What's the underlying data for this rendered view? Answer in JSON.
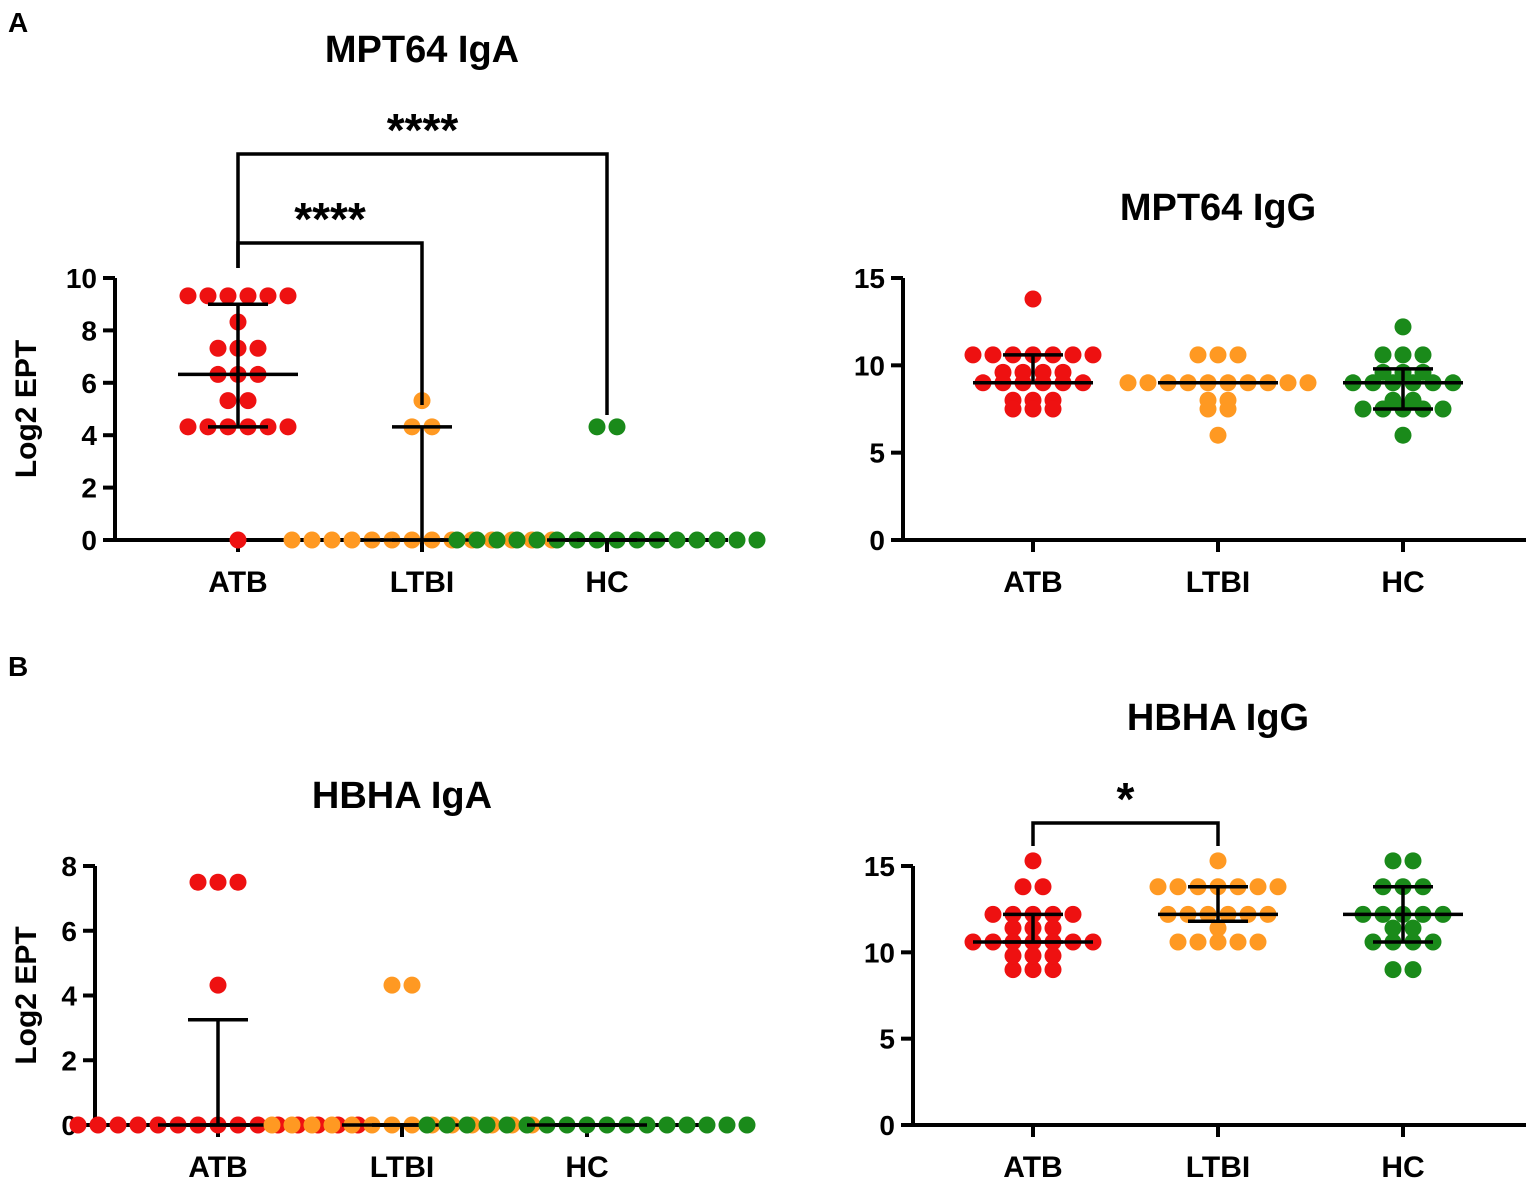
{
  "figure": {
    "panel_labels": [
      "A",
      "B"
    ]
  },
  "colors": {
    "ATB": "#ee1111",
    "LTBI": "#ff9922",
    "HC": "#1a8a1a",
    "axis": "#000000"
  },
  "chart_data": [
    {
      "id": "mpt64-iga",
      "type": "scatter",
      "panel": "A",
      "title": "MPT64 IgA",
      "ylabel": "Log2 EPT",
      "xlabel": "",
      "categories": [
        "ATB",
        "LTBI",
        "HC"
      ],
      "yticks": [
        0,
        2,
        4,
        6,
        8,
        10
      ],
      "ylim": [
        0,
        10
      ],
      "groups": [
        {
          "name": "ATB",
          "median": 6.32,
          "iqr": [
            4.32,
            9.0
          ],
          "points": [
            9.32,
            9.32,
            9.32,
            9.32,
            9.32,
            9.32,
            8.32,
            7.32,
            7.32,
            7.32,
            6.32,
            6.32,
            6.32,
            5.32,
            5.32,
            4.32,
            4.32,
            4.32,
            4.32,
            4.32,
            4.32,
            0
          ]
        },
        {
          "name": "LTBI",
          "median": 0,
          "iqr": [
            0,
            4.32
          ],
          "points": [
            5.32,
            4.32,
            4.32,
            0,
            0,
            0,
            0,
            0,
            0,
            0,
            0,
            0,
            0,
            0,
            0,
            0,
            0
          ]
        },
        {
          "name": "HC",
          "median": 0,
          "iqr": [
            0,
            0
          ],
          "points": [
            4.32,
            4.32,
            0,
            0,
            0,
            0,
            0,
            0,
            0,
            0,
            0,
            0,
            0,
            0,
            0,
            0,
            0,
            0
          ]
        }
      ],
      "significance": [
        {
          "from": "ATB",
          "to": "LTBI",
          "label": "****",
          "level": 1
        },
        {
          "from": "ATB",
          "to": "HC",
          "label": "****",
          "level": 2
        }
      ]
    },
    {
      "id": "mpt64-igg",
      "type": "scatter",
      "panel": "A",
      "title": "MPT64 IgG",
      "ylabel": "",
      "xlabel": "",
      "categories": [
        "ATB",
        "LTBI",
        "HC"
      ],
      "yticks": [
        0,
        5,
        10,
        15
      ],
      "ylim": [
        0,
        15
      ],
      "groups": [
        {
          "name": "ATB",
          "median": 9.0,
          "iqr": [
            9.0,
            10.6
          ],
          "points": [
            13.8,
            10.6,
            10.6,
            10.6,
            10.6,
            10.6,
            10.6,
            10.6,
            9.6,
            9.6,
            9.6,
            9.6,
            9.0,
            9.0,
            9.0,
            9.0,
            9.0,
            9.0,
            8.0,
            8.0,
            8.0,
            7.5,
            7.5,
            7.5
          ]
        },
        {
          "name": "LTBI",
          "median": 9.0,
          "iqr": [
            9.0,
            9.0
          ],
          "points": [
            10.6,
            10.6,
            10.6,
            9.0,
            9.0,
            9.0,
            9.0,
            9.0,
            9.0,
            9.0,
            9.0,
            9.0,
            9.0,
            8.0,
            8.0,
            7.5,
            7.5,
            6.0
          ]
        },
        {
          "name": "HC",
          "median": 9.0,
          "iqr": [
            7.5,
            9.8
          ],
          "points": [
            12.2,
            10.6,
            10.6,
            10.6,
            9.6,
            9.6,
            9.6,
            9.0,
            9.0,
            9.0,
            9.0,
            9.0,
            9.0,
            8.0,
            8.0,
            7.5,
            7.5,
            7.5,
            7.5,
            7.5,
            6.0
          ]
        }
      ],
      "significance": []
    },
    {
      "id": "hbha-iga",
      "type": "scatter",
      "panel": "B",
      "title": "HBHA IgA",
      "ylabel": "Log2 EPT",
      "xlabel": "",
      "categories": [
        "ATB",
        "LTBI",
        "HC"
      ],
      "yticks": [
        0,
        2,
        4,
        6,
        8
      ],
      "ylim": [
        0,
        8
      ],
      "groups": [
        {
          "name": "ATB",
          "median": 0,
          "iqr": [
            0,
            3.25
          ],
          "points": [
            7.5,
            7.5,
            7.5,
            4.32,
            0,
            0,
            0,
            0,
            0,
            0,
            0,
            0,
            0,
            0,
            0,
            0,
            0,
            0,
            0
          ]
        },
        {
          "name": "LTBI",
          "median": 0,
          "iqr": [
            0,
            0
          ],
          "points": [
            4.32,
            4.32,
            0,
            0,
            0,
            0,
            0,
            0,
            0,
            0,
            0,
            0,
            0,
            0,
            0,
            0
          ]
        },
        {
          "name": "HC",
          "median": 0,
          "iqr": [
            0,
            0
          ],
          "points": [
            0,
            0,
            0,
            0,
            0,
            0,
            0,
            0,
            0,
            0,
            0,
            0,
            0,
            0,
            0,
            0,
            0
          ]
        }
      ],
      "significance": []
    },
    {
      "id": "hbha-igg",
      "type": "scatter",
      "panel": "B",
      "title": "HBHA IgG",
      "ylabel": "",
      "xlabel": "",
      "categories": [
        "ATB",
        "LTBI",
        "HC"
      ],
      "yticks": [
        0,
        5,
        10,
        15
      ],
      "ylim": [
        0,
        15
      ],
      "groups": [
        {
          "name": "ATB",
          "median": 10.6,
          "iqr": [
            10.6,
            12.2
          ],
          "points": [
            15.3,
            13.8,
            13.8,
            12.2,
            12.2,
            12.2,
            12.2,
            12.2,
            11.4,
            11.4,
            11.4,
            10.6,
            10.6,
            10.6,
            10.6,
            10.6,
            10.6,
            10.6,
            9.8,
            9.8,
            9.8,
            9.0,
            9.0,
            9.0
          ]
        },
        {
          "name": "LTBI",
          "median": 12.2,
          "iqr": [
            11.8,
            13.8
          ],
          "points": [
            15.3,
            13.8,
            13.8,
            13.8,
            13.8,
            13.8,
            13.8,
            13.8,
            12.2,
            12.2,
            12.2,
            12.2,
            12.2,
            12.2,
            11.4,
            10.6,
            10.6,
            10.6,
            10.6,
            10.6
          ]
        },
        {
          "name": "HC",
          "median": 12.2,
          "iqr": [
            10.6,
            13.8
          ],
          "points": [
            15.3,
            15.3,
            13.8,
            13.8,
            13.8,
            12.2,
            12.2,
            12.2,
            12.2,
            12.2,
            11.4,
            11.4,
            10.6,
            10.6,
            10.6,
            10.6,
            9.0,
            9.0
          ]
        }
      ],
      "significance": [
        {
          "from": "ATB",
          "to": "LTBI",
          "label": "*",
          "level": 1
        }
      ]
    }
  ]
}
